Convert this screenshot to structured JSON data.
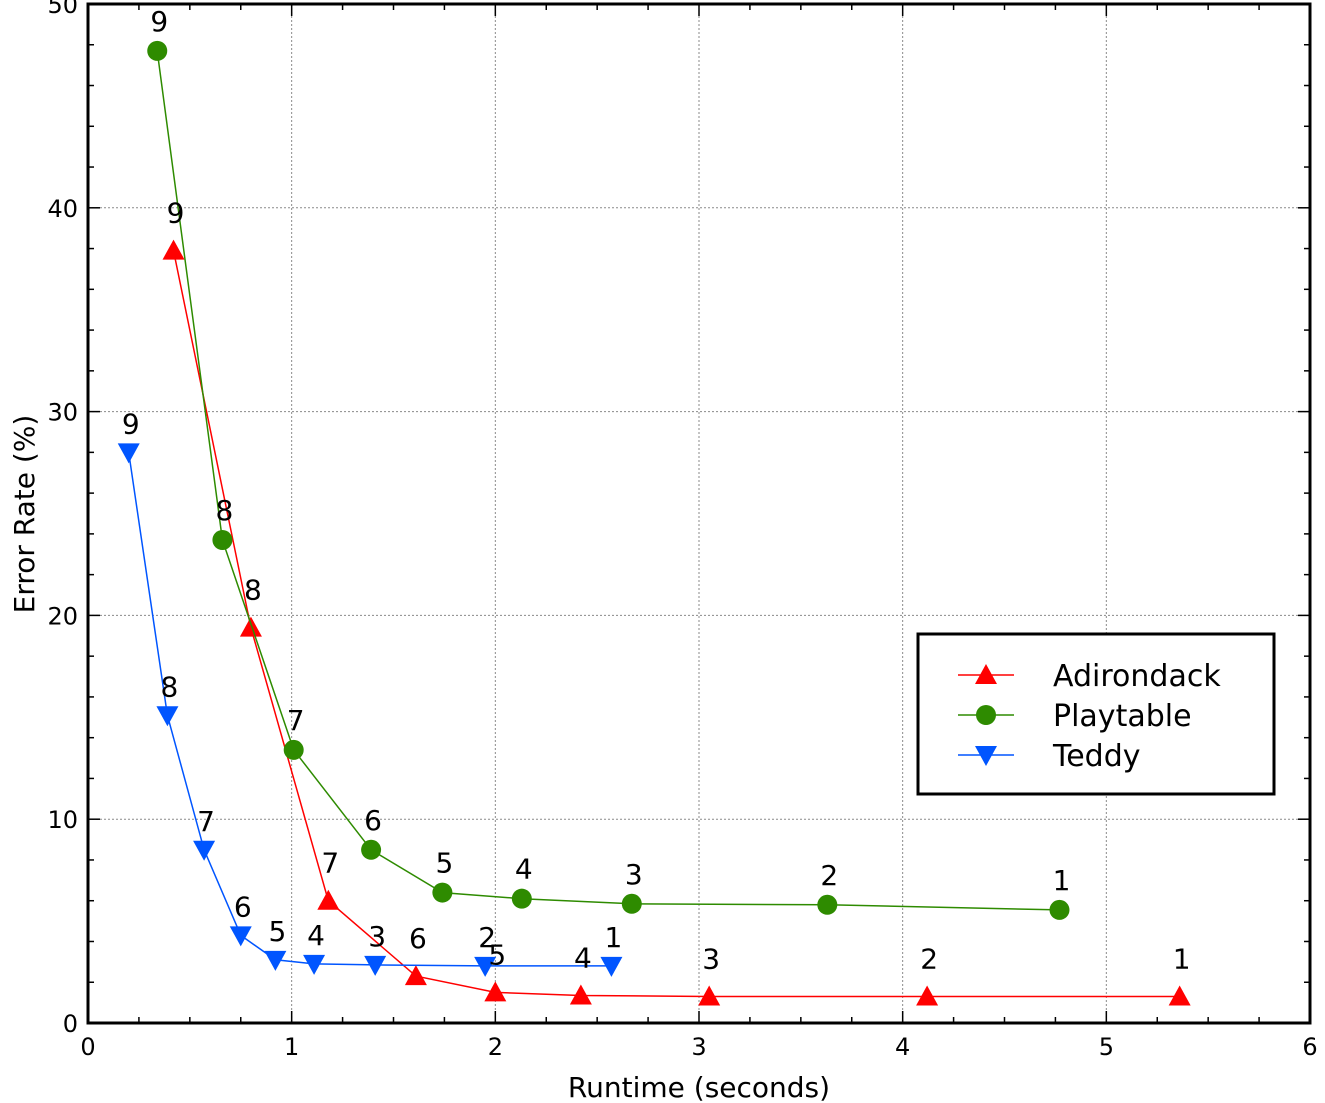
{
  "chart_data": {
    "type": "line",
    "title": "",
    "xlabel": "Runtime (seconds)",
    "ylabel": "Error Rate (%)",
    "xlim": [
      0,
      6
    ],
    "ylim": [
      0,
      50
    ],
    "xticks": [
      0,
      1,
      2,
      3,
      4,
      5,
      6
    ],
    "yticks": [
      0,
      10,
      20,
      30,
      40,
      50
    ],
    "grid": true,
    "legend_position": "right",
    "series": [
      {
        "name": "Adirondack",
        "color": "#ff0000",
        "marker": "triangle-up",
        "points": [
          {
            "x": 0.42,
            "y": 37.9,
            "label": "9"
          },
          {
            "x": 0.8,
            "y": 19.4,
            "label": "8"
          },
          {
            "x": 1.18,
            "y": 6.0,
            "label": "7"
          },
          {
            "x": 1.61,
            "y": 2.3,
            "label": "6"
          },
          {
            "x": 2.0,
            "y": 1.5,
            "label": "5"
          },
          {
            "x": 2.42,
            "y": 1.35,
            "label": "4"
          },
          {
            "x": 3.05,
            "y": 1.3,
            "label": "3"
          },
          {
            "x": 4.12,
            "y": 1.3,
            "label": "2"
          },
          {
            "x": 5.36,
            "y": 1.3,
            "label": "1"
          }
        ]
      },
      {
        "name": "Playtable",
        "color": "#2e8b00",
        "marker": "circle",
        "points": [
          {
            "x": 0.34,
            "y": 47.7,
            "label": "9"
          },
          {
            "x": 0.66,
            "y": 23.7,
            "label": "8"
          },
          {
            "x": 1.01,
            "y": 13.4,
            "label": "7"
          },
          {
            "x": 1.39,
            "y": 8.5,
            "label": "6"
          },
          {
            "x": 1.74,
            "y": 6.4,
            "label": "5"
          },
          {
            "x": 2.13,
            "y": 6.1,
            "label": "4"
          },
          {
            "x": 2.67,
            "y": 5.85,
            "label": "3"
          },
          {
            "x": 3.63,
            "y": 5.8,
            "label": "2"
          },
          {
            "x": 4.77,
            "y": 5.55,
            "label": "1"
          }
        ]
      },
      {
        "name": "Teddy",
        "color": "#0055ff",
        "marker": "triangle-down",
        "points": [
          {
            "x": 0.2,
            "y": 28.0,
            "label": "9"
          },
          {
            "x": 0.39,
            "y": 15.1,
            "label": "8"
          },
          {
            "x": 0.57,
            "y": 8.5,
            "label": "7"
          },
          {
            "x": 0.75,
            "y": 4.3,
            "label": "6"
          },
          {
            "x": 0.92,
            "y": 3.1,
            "label": "5"
          },
          {
            "x": 1.11,
            "y": 2.9,
            "label": "4"
          },
          {
            "x": 1.41,
            "y": 2.85,
            "label": "3"
          },
          {
            "x": 1.95,
            "y": 2.8,
            "label": "2"
          },
          {
            "x": 2.57,
            "y": 2.8,
            "label": "1"
          }
        ]
      }
    ]
  }
}
